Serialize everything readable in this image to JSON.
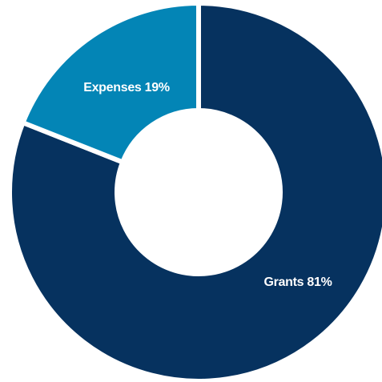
{
  "chart_data": {
    "type": "pie",
    "donut": true,
    "slices": [
      {
        "name": "Grants",
        "value": 81,
        "label": "Grants 81%",
        "color": "#06325f"
      },
      {
        "name": "Expenses",
        "value": 19,
        "label": "Expenses 19%",
        "color": "#0385b6"
      }
    ],
    "legend": "none",
    "start_angle_deg": 0,
    "direction": "clockwise",
    "separator_color": "#ffffff"
  }
}
